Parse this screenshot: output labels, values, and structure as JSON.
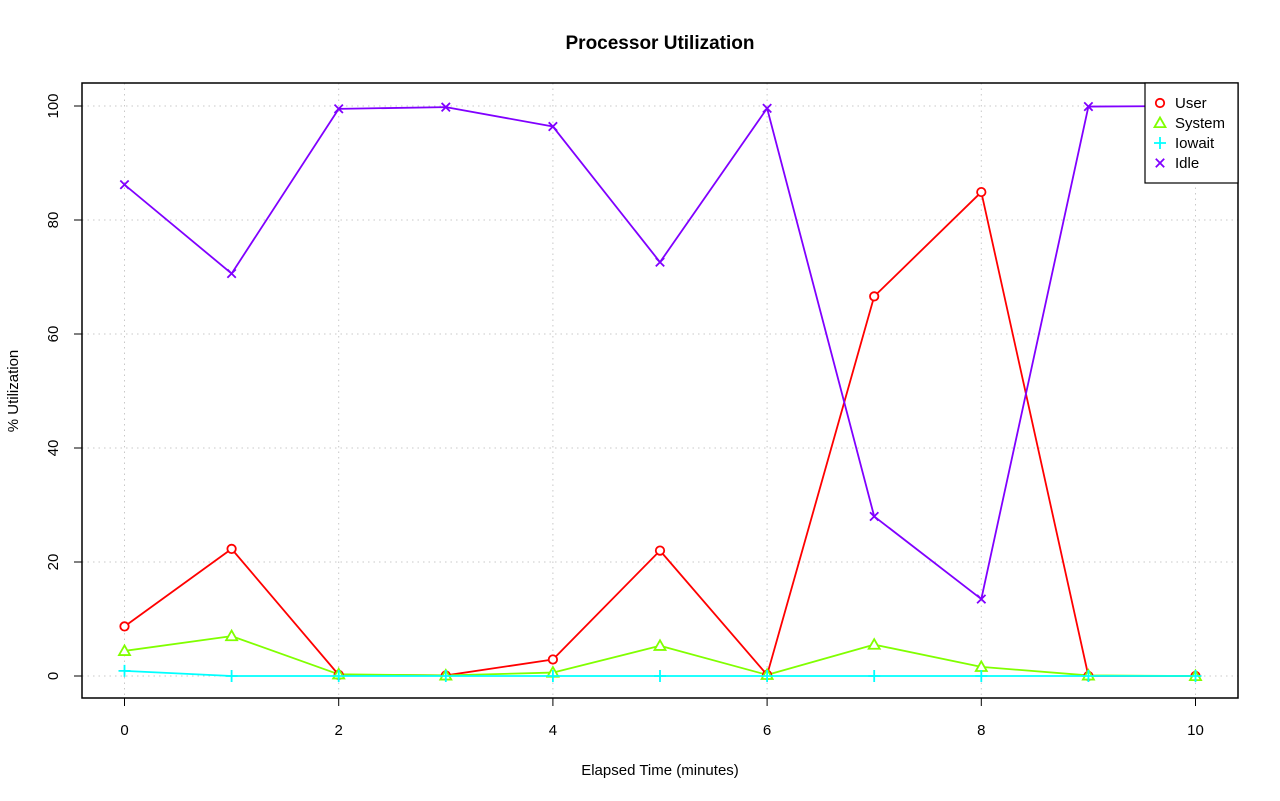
{
  "chart_data": {
    "type": "line",
    "title": "Processor Utilization",
    "xlabel": "Elapsed Time (minutes)",
    "ylabel": "% Utilization",
    "xlim": [
      0,
      10
    ],
    "ylim": [
      0,
      100
    ],
    "x_ticks": [
      "0",
      "2",
      "4",
      "6",
      "8",
      "10"
    ],
    "y_ticks": [
      "0",
      "20",
      "40",
      "60",
      "80",
      "100"
    ],
    "grid": true,
    "legend_position": "top-right",
    "x": [
      0,
      1,
      2,
      3,
      4,
      5,
      6,
      7,
      8,
      9,
      10
    ],
    "series": [
      {
        "name": "User",
        "color": "#ff0000",
        "marker": "circle",
        "values": [
          8.7,
          22.3,
          0.2,
          0.1,
          2.9,
          22.0,
          0.2,
          66.6,
          84.9,
          0.0,
          0.0
        ]
      },
      {
        "name": "System",
        "color": "#80ff00",
        "marker": "triangle",
        "values": [
          4.4,
          7.0,
          0.3,
          0.1,
          0.6,
          5.3,
          0.2,
          5.5,
          1.6,
          0.1,
          0.0
        ]
      },
      {
        "name": "Iowait",
        "color": "#00ffff",
        "marker": "plus",
        "values": [
          0.9,
          0.0,
          0.0,
          0.0,
          0.0,
          0.0,
          0.0,
          0.0,
          0.0,
          0.0,
          0.0
        ]
      },
      {
        "name": "Idle",
        "color": "#8000ff",
        "marker": "cross",
        "values": [
          86.2,
          70.6,
          99.5,
          99.8,
          96.4,
          72.6,
          99.6,
          28.0,
          13.5,
          99.9,
          100.0
        ]
      }
    ]
  }
}
